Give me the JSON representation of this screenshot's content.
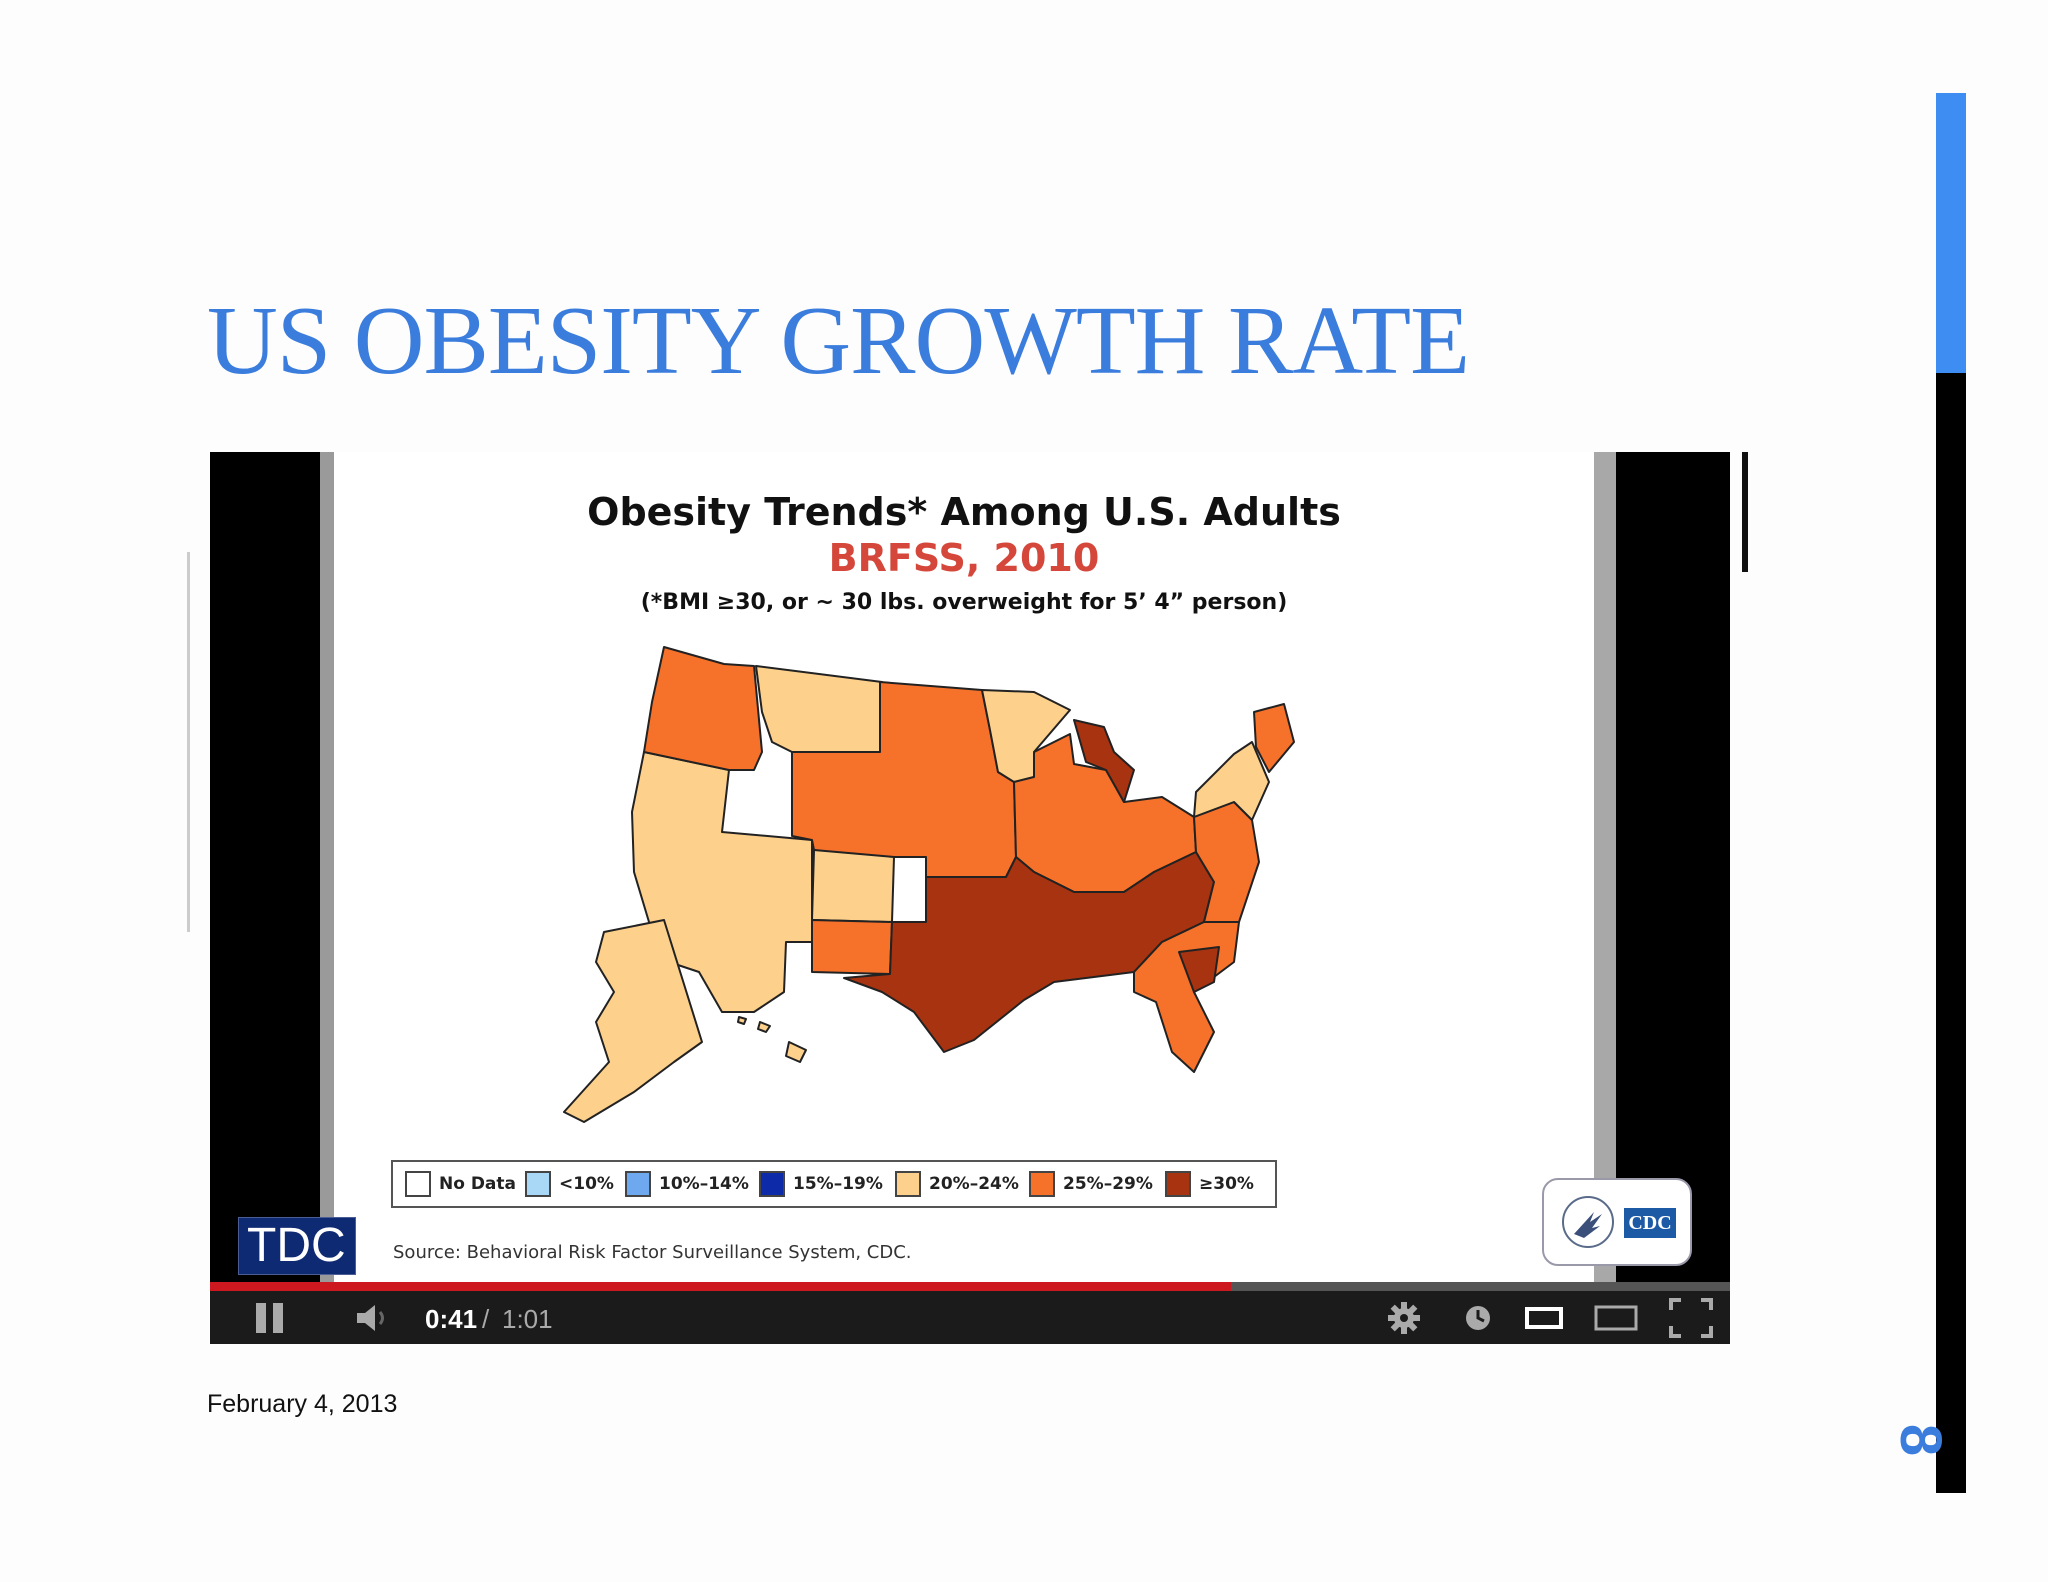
{
  "slide": {
    "title": "US OBESITY GROWTH RATE",
    "date": "February 4, 2013",
    "page_number": "8"
  },
  "video": {
    "frame": {
      "title": "Obesity Trends* Among U.S. Adults",
      "subtitle": "BRFSS, 2010",
      "note": "(*BMI ≥30, or ~ 30 lbs. overweight for 5’ 4” person)",
      "source": "Source: Behavioral Risk Factor Surveillance System, CDC.",
      "watermark": "TDC",
      "cdc_badge": "CDC",
      "legend": [
        {
          "label": "No Data",
          "color": "#ffffff"
        },
        {
          "label": "<10%",
          "color": "#a8d8f6"
        },
        {
          "label": "10%–14%",
          "color": "#6ea8ee"
        },
        {
          "label": "15%–19%",
          "color": "#0d2aa8"
        },
        {
          "label": "20%–24%",
          "color": "#fdd08c"
        },
        {
          "label": "25%–29%",
          "color": "#f6712a"
        },
        {
          "label": "≥30%",
          "color": "#a83310"
        }
      ]
    },
    "player": {
      "current_time": "0:41",
      "separator": "/",
      "total_time": "1:01",
      "progress": 0.672,
      "icons": [
        "pause-icon",
        "volume-icon",
        "gear-icon",
        "clock-icon",
        "small-player-icon",
        "large-player-icon",
        "fullscreen-icon"
      ]
    }
  },
  "colors": {
    "accent": "#3b7ddd",
    "sidebar_blue": "#3d8df2",
    "obesity_20_24": "#fdd08c",
    "obesity_25_29": "#f6712a",
    "obesity_30_plus": "#a83310"
  }
}
